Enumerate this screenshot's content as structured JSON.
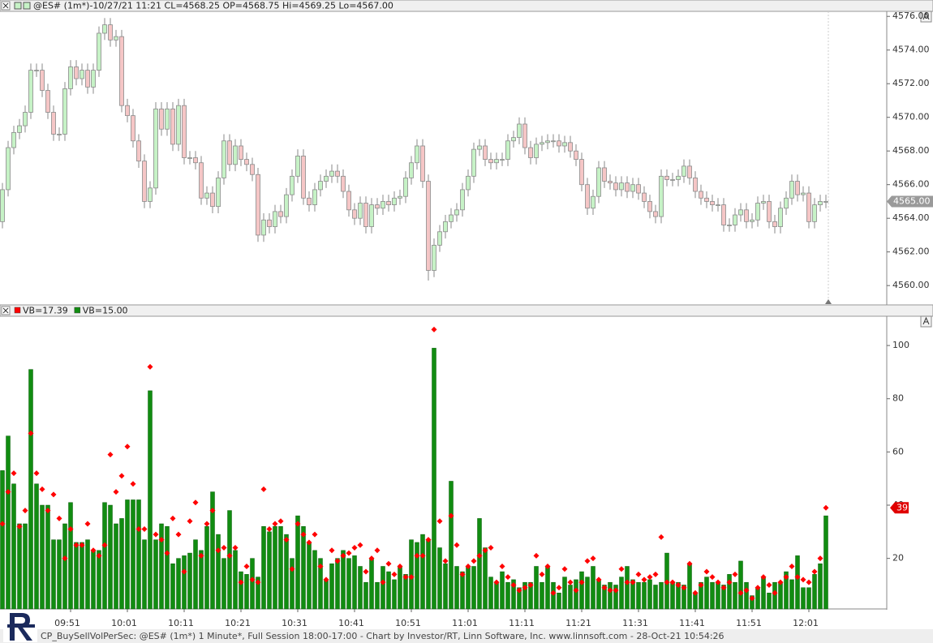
{
  "chart_data": [
    {
      "type": "candlestick",
      "title": "@ES# (1m*)-10/27/21 11:21 CL=4568.25 OP=4568.75 Hi=4569.25 Lo=4567.00",
      "up_color": "#c6f2c6",
      "down_color": "#f5c6c6",
      "open": [
        4563.8,
        4565.7,
        4568.2,
        4569.1,
        4569.5,
        4570.3,
        4572.8,
        4572.8,
        4571.6,
        4570.3,
        4569.0,
        4569.0,
        4571.7,
        4573.0,
        4572.3,
        4572.8,
        4571.8,
        4572.8,
        4575.0,
        4575.5,
        4574.6,
        4574.8,
        4570.7,
        4570.1,
        4568.6,
        4567.4,
        4565.0,
        4565.8,
        4570.5,
        4569.3,
        4570.5,
        4568.4,
        4570.7,
        4567.6,
        4567.6,
        4567.3,
        4565.2,
        4565.5,
        4564.7,
        4566.4,
        4568.6,
        4567.2,
        4568.3,
        4567.5,
        4567.2,
        4566.6,
        4563.0,
        4563.9,
        4563.5,
        4564.4,
        4564.1,
        4565.4,
        4566.5,
        4567.7,
        4565.2,
        4564.8,
        4565.7,
        4566.2,
        4566.5,
        4566.8,
        4566.5,
        4565.6,
        4564.5,
        4564.0,
        4564.9,
        4563.5,
        4564.8,
        4564.6,
        4565.0,
        4564.8,
        4565.2,
        4565.3,
        4566.4,
        4567.3,
        4568.3,
        4566.2,
        4560.9,
        4562.4,
        4563.2,
        4563.8,
        4564.2,
        4564.5,
        4565.7,
        4566.5,
        4568.1,
        4568.3,
        4567.5,
        4567.3,
        4567.5,
        4567.5,
        4568.6,
        4568.8,
        4569.6,
        4568.2,
        4567.6,
        4568.4,
        4568.5,
        4568.6,
        4568.6,
        4568.3,
        4568.5,
        4568.0,
        4567.5,
        4566.0,
        4564.6,
        4565.3,
        4567.0,
        4566.2,
        4566.1,
        4565.7,
        4566.1,
        4565.6,
        4566.0,
        4565.5,
        4565.0,
        4564.4,
        4564.1,
        4566.5,
        4566.3,
        4566.3,
        4566.5,
        4567.1,
        4566.4,
        4565.6,
        4565.2,
        4565.0,
        4564.8,
        4564.8,
        4563.6,
        4563.6,
        4564.2,
        4564.5,
        4563.8,
        4563.9,
        4564.9,
        4565.0,
        4563.8,
        4563.5,
        4564.6,
        4565.2,
        4566.2,
        4565.4,
        4565.5,
        4563.8,
        4564.8,
        4565.0
      ],
      "high": [
        4566.1,
        4568.6,
        4569.5,
        4569.9,
        4570.7,
        4573.2,
        4573.2,
        4573.2,
        4572.0,
        4570.7,
        4569.4,
        4572.1,
        4573.4,
        4573.4,
        4573.2,
        4573.2,
        4573.2,
        4575.4,
        4575.9,
        4575.9,
        4575.2,
        4575.2,
        4571.1,
        4570.5,
        4569.0,
        4567.8,
        4566.2,
        4570.9,
        4570.9,
        4570.9,
        4570.9,
        4571.1,
        4571.1,
        4568.0,
        4568.0,
        4567.7,
        4565.9,
        4565.9,
        4566.8,
        4569.0,
        4569.0,
        4568.7,
        4568.7,
        4567.9,
        4567.6,
        4567.0,
        4564.3,
        4564.3,
        4564.8,
        4564.8,
        4565.8,
        4566.9,
        4568.1,
        4568.1,
        4565.6,
        4566.1,
        4566.6,
        4566.9,
        4567.2,
        4567.2,
        4566.9,
        4566.0,
        4564.9,
        4565.3,
        4565.3,
        4565.2,
        4565.2,
        4565.4,
        4565.4,
        4565.6,
        4565.7,
        4566.8,
        4567.7,
        4568.7,
        4568.7,
        4566.6,
        4562.8,
        4563.6,
        4564.2,
        4564.6,
        4564.9,
        4566.1,
        4566.9,
        4568.5,
        4568.7,
        4568.7,
        4567.9,
        4567.9,
        4567.9,
        4569.0,
        4569.2,
        4570.0,
        4570.0,
        4568.6,
        4568.8,
        4568.9,
        4569.0,
        4569.0,
        4569.0,
        4568.9,
        4568.9,
        4568.4,
        4567.9,
        4566.4,
        4565.7,
        4567.4,
        4567.4,
        4566.6,
        4566.5,
        4566.5,
        4566.5,
        4566.4,
        4566.4,
        4565.9,
        4565.4,
        4564.8,
        4566.9,
        4566.9,
        4566.7,
        4566.9,
        4567.5,
        4567.5,
        4566.8,
        4566.0,
        4565.6,
        4565.4,
        4565.2,
        4565.2,
        4564.0,
        4564.6,
        4564.9,
        4564.9,
        4564.3,
        4565.3,
        4565.4,
        4565.4,
        4564.2,
        4565.0,
        4565.6,
        4566.6,
        4566.6,
        4565.9,
        4565.9,
        4565.2,
        4565.4,
        4565.4
      ],
      "low": [
        4563.4,
        4565.3,
        4567.8,
        4568.7,
        4569.1,
        4569.9,
        4572.4,
        4571.2,
        4569.9,
        4568.6,
        4568.6,
        4568.6,
        4571.3,
        4571.9,
        4571.9,
        4571.4,
        4571.4,
        4572.4,
        4574.6,
        4574.2,
        4574.2,
        4570.3,
        4569.7,
        4568.2,
        4567.0,
        4564.6,
        4564.6,
        4565.4,
        4568.9,
        4568.9,
        4568.0,
        4568.0,
        4567.2,
        4567.2,
        4566.9,
        4564.8,
        4564.8,
        4564.3,
        4564.3,
        4566.0,
        4566.8,
        4566.8,
        4567.1,
        4566.8,
        4566.2,
        4562.6,
        4562.6,
        4563.1,
        4563.1,
        4563.7,
        4563.7,
        4565.0,
        4566.1,
        4564.8,
        4564.4,
        4564.4,
        4565.3,
        4565.8,
        4566.1,
        4566.1,
        4565.2,
        4564.1,
        4563.6,
        4563.6,
        4563.1,
        4563.1,
        4564.2,
        4564.2,
        4564.4,
        4564.4,
        4564.8,
        4564.9,
        4566.0,
        4566.9,
        4565.8,
        4560.3,
        4560.5,
        4562.0,
        4562.8,
        4563.4,
        4563.8,
        4564.1,
        4565.3,
        4566.1,
        4567.7,
        4567.1,
        4566.9,
        4566.9,
        4567.1,
        4567.1,
        4568.2,
        4568.4,
        4567.8,
        4567.2,
        4567.2,
        4568.0,
        4568.1,
        4568.2,
        4567.9,
        4567.9,
        4567.6,
        4567.1,
        4565.6,
        4564.2,
        4564.2,
        4564.9,
        4565.8,
        4565.7,
        4565.3,
        4565.3,
        4565.2,
        4565.2,
        4565.1,
        4564.6,
        4564.0,
        4563.7,
        4563.7,
        4565.9,
        4565.9,
        4565.9,
        4566.1,
        4566.0,
        4565.2,
        4564.8,
        4564.6,
        4564.4,
        4564.4,
        4563.2,
        4563.2,
        4563.2,
        4563.8,
        4563.4,
        4563.4,
        4563.5,
        4564.5,
        4563.4,
        4563.1,
        4563.1,
        4564.2,
        4564.8,
        4565.0,
        4565.0,
        4563.4,
        4563.4,
        4564.4,
        4564.6
      ],
      "close": [
        4565.7,
        4568.2,
        4569.1,
        4569.5,
        4570.3,
        4572.8,
        4572.8,
        4571.6,
        4570.3,
        4569.0,
        4569.0,
        4571.7,
        4573.0,
        4572.3,
        4572.8,
        4571.8,
        4572.8,
        4575.0,
        4575.5,
        4574.6,
        4574.8,
        4570.7,
        4570.1,
        4568.6,
        4567.4,
        4565.0,
        4565.8,
        4570.5,
        4569.3,
        4570.5,
        4568.4,
        4570.7,
        4567.6,
        4567.6,
        4567.3,
        4565.2,
        4565.5,
        4564.7,
        4566.4,
        4568.6,
        4567.2,
        4568.3,
        4567.5,
        4567.2,
        4566.6,
        4563.0,
        4563.9,
        4563.5,
        4564.4,
        4564.1,
        4565.4,
        4566.5,
        4567.7,
        4565.2,
        4564.8,
        4565.7,
        4566.2,
        4566.5,
        4566.8,
        4566.5,
        4565.6,
        4564.5,
        4564.0,
        4564.9,
        4563.5,
        4564.8,
        4564.6,
        4565.0,
        4564.8,
        4565.2,
        4565.3,
        4566.4,
        4567.3,
        4568.3,
        4566.2,
        4560.9,
        4562.4,
        4563.2,
        4563.8,
        4564.2,
        4564.5,
        4565.7,
        4566.5,
        4568.1,
        4568.3,
        4567.5,
        4567.3,
        4567.5,
        4567.5,
        4568.6,
        4568.8,
        4569.6,
        4568.2,
        4567.6,
        4568.4,
        4568.5,
        4568.6,
        4568.6,
        4568.3,
        4568.5,
        4568.0,
        4567.5,
        4566.0,
        4564.6,
        4565.3,
        4567.0,
        4566.2,
        4566.1,
        4565.7,
        4566.1,
        4565.6,
        4566.0,
        4565.5,
        4565.0,
        4564.4,
        4564.1,
        4566.5,
        4566.3,
        4566.3,
        4566.5,
        4567.1,
        4566.4,
        4565.6,
        4565.2,
        4565.0,
        4564.8,
        4564.8,
        4563.6,
        4563.6,
        4564.2,
        4564.5,
        4563.8,
        4563.9,
        4564.9,
        4565.0,
        4563.8,
        4563.5,
        4564.6,
        4565.2,
        4566.2,
        4565.4,
        4565.5,
        4563.8,
        4564.8,
        4565.0,
        4565.0
      ],
      "ylim": [
        4558.9,
        4576.3
      ],
      "yticks": [
        {
          "value": 4560,
          "label": "4560.00"
        },
        {
          "value": 4562,
          "label": "4562.00"
        },
        {
          "value": 4564,
          "label": "4564.00"
        },
        {
          "value": 4566,
          "label": "4566.00"
        },
        {
          "value": 4568,
          "label": "4568.00"
        },
        {
          "value": 4570,
          "label": "4570.00"
        },
        {
          "value": 4572,
          "label": "4572.00"
        },
        {
          "value": 4574,
          "label": "4574.00"
        },
        {
          "value": 4576,
          "label": "4576.00"
        }
      ],
      "last_price": {
        "value": 4565,
        "label": "4565.00"
      }
    },
    {
      "type": "bar",
      "categories": [
        null,
        null,
        null,
        null,
        null,
        null,
        null,
        null,
        null,
        null,
        null,
        null,
        "09:51",
        null,
        null,
        null,
        null,
        null,
        null,
        null,
        null,
        null,
        "10:01",
        null,
        null,
        null,
        null,
        null,
        null,
        null,
        null,
        null,
        "10:11",
        null,
        null,
        null,
        null,
        null,
        null,
        null,
        null,
        null,
        "10:21",
        null,
        null,
        null,
        null,
        null,
        null,
        null,
        null,
        null,
        "10:31",
        null,
        null,
        null,
        null,
        null,
        null,
        null,
        null,
        null,
        "10:41",
        null,
        null,
        null,
        null,
        null,
        null,
        null,
        null,
        null,
        "10:51",
        null,
        null,
        null,
        null,
        null,
        null,
        null,
        null,
        null,
        "11:01",
        null,
        null,
        null,
        null,
        null,
        null,
        null,
        null,
        null,
        "11:11",
        null,
        null,
        null,
        null,
        null,
        null,
        null,
        null,
        null,
        "11:21",
        null,
        null,
        null,
        null,
        null,
        null,
        null,
        null,
        null,
        "11:31",
        null,
        null,
        null,
        null,
        null,
        null,
        null,
        null,
        null,
        "11:41",
        null,
        null,
        null,
        null,
        null,
        null,
        null,
        null,
        null,
        "11:51",
        null,
        null,
        null,
        null,
        null,
        null,
        null,
        null,
        null,
        "12:01",
        null,
        null,
        null
      ],
      "series": [
        {
          "name": "VB=17.39",
          "color": "#ff0000",
          "marker": "diamond",
          "values": [
            33,
            45,
            52,
            32,
            38,
            67,
            52,
            46,
            38,
            44,
            35,
            20,
            31,
            25,
            25,
            33,
            23,
            21,
            25,
            59,
            45,
            51,
            62,
            48,
            31,
            31,
            92,
            29,
            27,
            22,
            35,
            29,
            15,
            34,
            41,
            21,
            33,
            38,
            23,
            24,
            21,
            24,
            11,
            17,
            12,
            11,
            46,
            31,
            33,
            34,
            27,
            16,
            33,
            29,
            26,
            29,
            17,
            12,
            23,
            19,
            21,
            22,
            24,
            25,
            15,
            20,
            23,
            11,
            18,
            14,
            17,
            13,
            13,
            21,
            21,
            27,
            106,
            34,
            19,
            36,
            25,
            14,
            17,
            19,
            21,
            23,
            24,
            11,
            17,
            13,
            10,
            8,
            9,
            10,
            21,
            14,
            17,
            7,
            9,
            16,
            11,
            8,
            11,
            19,
            20,
            12,
            9,
            8,
            8,
            16,
            11,
            11,
            14,
            12,
            13,
            14,
            28,
            11,
            11,
            10,
            9,
            18,
            7,
            10,
            15,
            13,
            11,
            9,
            11,
            14,
            7,
            8,
            5,
            9,
            13,
            10,
            7,
            11,
            13,
            17,
            13,
            12,
            11,
            15,
            20,
            39
          ]
        },
        {
          "name": "VB=15.00",
          "color": "#118c11",
          "marker": "bar",
          "values": [
            53,
            66,
            48,
            33,
            33,
            91,
            48,
            40,
            40,
            27,
            27,
            33,
            41,
            26,
            26,
            27,
            23,
            23,
            41,
            40,
            33,
            35,
            42,
            42,
            42,
            27,
            83,
            27,
            33,
            32,
            18,
            20,
            21,
            22,
            27,
            23,
            32,
            45,
            29,
            20,
            38,
            23,
            15,
            14,
            20,
            13,
            32,
            30,
            32,
            32,
            29,
            20,
            36,
            32,
            26,
            23,
            20,
            12,
            18,
            20,
            23,
            20,
            21,
            17,
            11,
            20,
            11,
            17,
            15,
            12,
            17,
            14,
            27,
            26,
            29,
            27,
            99,
            24,
            18,
            49,
            17,
            15,
            17,
            17,
            35,
            24,
            13,
            11,
            15,
            11,
            12,
            9,
            11,
            11,
            17,
            11,
            17,
            11,
            7,
            13,
            10,
            12,
            15,
            13,
            17,
            12,
            10,
            11,
            10,
            13,
            17,
            12,
            11,
            11,
            12,
            10,
            11,
            22,
            11,
            11,
            10,
            18,
            7,
            11,
            13,
            11,
            11,
            10,
            14,
            11,
            19,
            11,
            6,
            9,
            13,
            7,
            11,
            11,
            15,
            12,
            21,
            9,
            9,
            14,
            18,
            36
          ]
        }
      ],
      "ylim": [
        1,
        111
      ],
      "yticks": [
        20,
        40,
        60,
        80,
        100
      ],
      "last_value": 39
    }
  ],
  "footer": "CP_BuySellVolPerSec: @ES# (1m*) 1 Minute*, Full Session 18:00-17:00 - Chart by Investor/RT, Linn Software, Inc. www.linnsoft.com - 28-Oct-21 10:54:26"
}
